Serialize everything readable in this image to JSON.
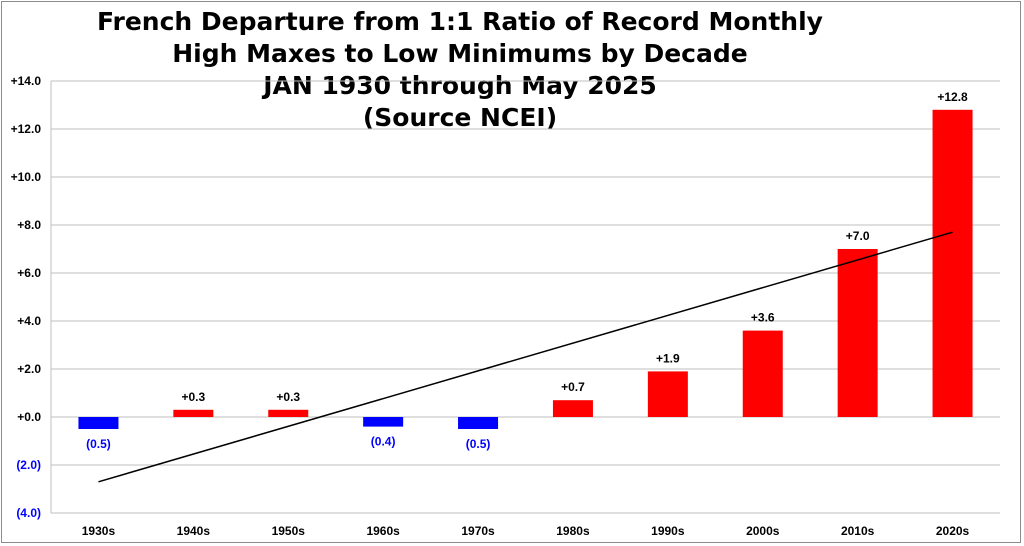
{
  "chart_data": {
    "type": "bar",
    "title_lines": [
      "French Departure from 1:1 Ratio of Record Monthly",
      "High Maxes to Low Minimums by Decade",
      "JAN 1930 through May 2025",
      "(Source NCEI)"
    ],
    "categories": [
      "1930s",
      "1940s",
      "1950s",
      "1960s",
      "1970s",
      "1980s",
      "1990s",
      "2000s",
      "2010s",
      "2020s"
    ],
    "values": [
      -0.5,
      0.3,
      0.3,
      -0.4,
      -0.5,
      0.7,
      1.9,
      3.6,
      7.0,
      12.8
    ],
    "data_labels": [
      "(0.5)",
      "+0.3",
      "+0.3",
      "(0.4)",
      "(0.5)",
      "+0.7",
      "+1.9",
      "+3.6",
      "+7.0",
      "+12.8"
    ],
    "y_ticks": [
      14,
      12,
      10,
      8,
      6,
      4,
      2,
      0,
      -2,
      -4
    ],
    "y_tick_labels": [
      "+14.0",
      "+12.0",
      "+10.0",
      "+8.0",
      "+6.0",
      "+4.0",
      "+2.0",
      "+0.0",
      "(2.0)",
      "(4.0)"
    ],
    "ylim": [
      -4,
      14
    ],
    "grid": true,
    "trendline": {
      "type": "linear",
      "start": -2.7,
      "end": 7.7
    },
    "colors": {
      "positive": "#ff0000",
      "negative": "#0000ff",
      "negative_label": "#0000ff",
      "positive_label": "#000000",
      "gridline": "#bfbfbf",
      "trendline": "#000000"
    }
  }
}
